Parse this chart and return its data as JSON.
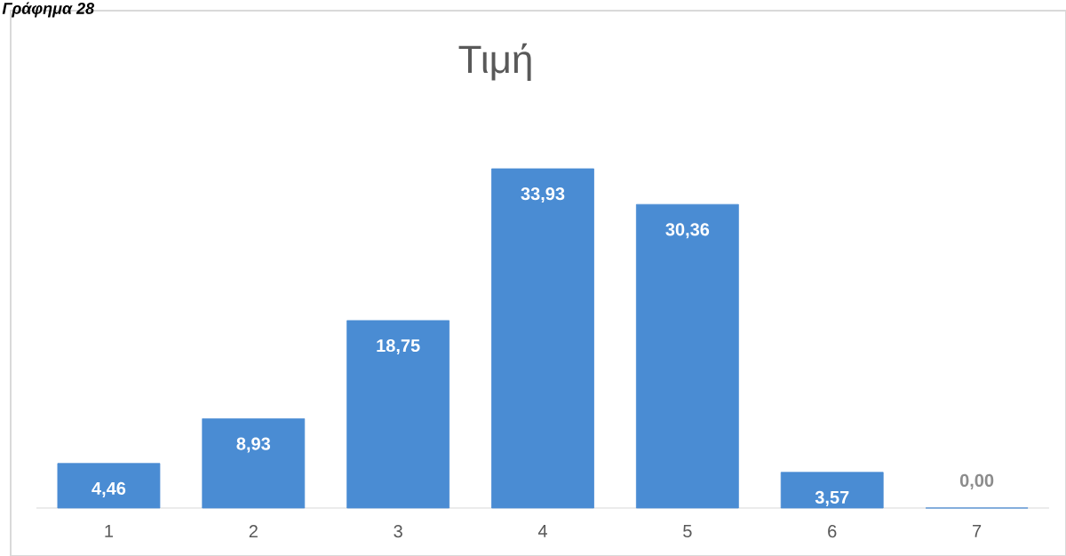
{
  "chart_data": {
    "type": "bar",
    "title": "Τιμή",
    "annotations": [
      "Γράφημα 28"
    ],
    "categories": [
      "1",
      "2",
      "3",
      "4",
      "5",
      "6",
      "7"
    ],
    "values": [
      4.46,
      8.93,
      18.75,
      33.93,
      30.36,
      3.57,
      0.0
    ],
    "value_labels": [
      "4,46",
      "8,93",
      "18,75",
      "33,93",
      "30,36",
      "3,57",
      "0,00"
    ],
    "color": "#4a8cd3"
  }
}
